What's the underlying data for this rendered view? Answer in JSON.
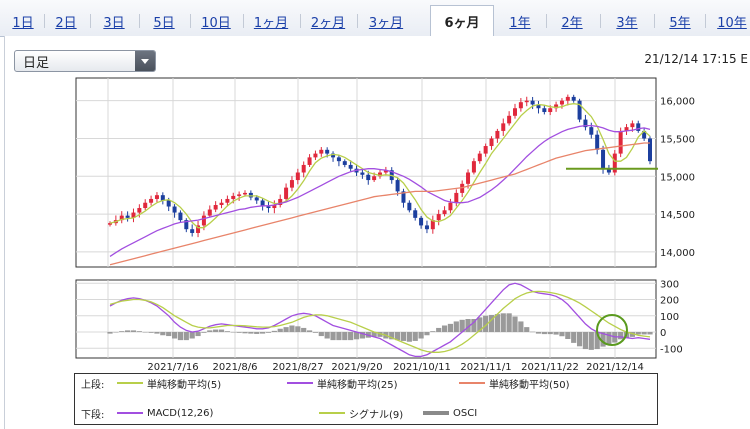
{
  "tabs": [
    {
      "label": "1日"
    },
    {
      "label": "2日"
    },
    {
      "label": "3日"
    },
    {
      "label": "5日"
    },
    {
      "label": "10日"
    },
    {
      "label": "1ヶ月"
    },
    {
      "label": "2ヶ月"
    },
    {
      "label": "3ヶ月"
    },
    {
      "label": "6ヶ月",
      "active": true
    },
    {
      "label": "1年"
    },
    {
      "label": "2年"
    },
    {
      "label": "3年"
    },
    {
      "label": "5年"
    },
    {
      "label": "10年"
    }
  ],
  "period_select": {
    "value": "日足"
  },
  "timestamp": "21/12/14 17:15 E",
  "legend": {
    "upper_label": "上段:",
    "lower_label": "下段:",
    "upper": [
      {
        "name": "単純移動平均(5)",
        "color": "#b8cf4a"
      },
      {
        "name": "単純移動平均(25)",
        "color": "#a24fe0"
      },
      {
        "name": "単純移動平均(50)",
        "color": "#e8846a"
      }
    ],
    "lower": [
      {
        "name": "MACD(12,26)",
        "color": "#a24fe0"
      },
      {
        "name": "シグナル(9)",
        "color": "#b8cf4a"
      },
      {
        "name": "OSCI",
        "color": "#8a8a8a"
      }
    ]
  },
  "chart_data": [
    {
      "type": "candlestick",
      "title": "",
      "x_ticks": [
        "2021/7/16",
        "2021/8/6",
        "2021/8/27",
        "2021/9/20",
        "2021/10/11",
        "2021/11/1",
        "2021/11/22",
        "2021/12/14"
      ],
      "ylim": [
        13800,
        16300
      ],
      "y_ticks": [
        14000,
        14500,
        15000,
        15500,
        16000
      ],
      "grid": true,
      "colors": {
        "up": "#e0283c",
        "down": "#1c3f9e"
      },
      "candles_close": [
        14380,
        14420,
        14480,
        14450,
        14520,
        14580,
        14650,
        14700,
        14750,
        14680,
        14600,
        14520,
        14420,
        14300,
        14250,
        14350,
        14480,
        14560,
        14620,
        14650,
        14700,
        14740,
        14760,
        14780,
        14720,
        14680,
        14600,
        14580,
        14620,
        14700,
        14850,
        14950,
        15050,
        15150,
        15250,
        15300,
        15350,
        15300,
        15250,
        15200,
        15150,
        15100,
        15050,
        15020,
        14950,
        15000,
        15050,
        15080,
        14950,
        14800,
        14650,
        14550,
        14450,
        14350,
        14300,
        14420,
        14500,
        14550,
        14650,
        14780,
        14900,
        15050,
        15200,
        15300,
        15400,
        15500,
        15600,
        15700,
        15800,
        15900,
        15980,
        16000,
        15950,
        15900,
        15850,
        15900,
        15950,
        16000,
        16050,
        16000,
        15750,
        15650,
        15550,
        15350,
        15100,
        15050,
        15300,
        15600,
        15650,
        15700,
        15600,
        15500,
        15200
      ],
      "series": [
        {
          "name": "単純移動平均(5)",
          "values": [
            14380,
            14400,
            14430,
            14440,
            14450,
            14490,
            14540,
            14600,
            14650,
            14680,
            14690,
            14650,
            14590,
            14500,
            14390,
            14320,
            14320,
            14380,
            14450,
            14530,
            14610,
            14670,
            14710,
            14740,
            14740,
            14740,
            14710,
            14670,
            14640,
            14640,
            14670,
            14740,
            14830,
            14940,
            15070,
            15180,
            15240,
            15270,
            15290,
            15280,
            15250,
            15200,
            15150,
            15100,
            15050,
            15030,
            15010,
            15020,
            15010,
            14980,
            14910,
            14800,
            14690,
            14560,
            14460,
            14410,
            14400,
            14430,
            14480,
            14580,
            14680,
            14790,
            14920,
            15050,
            15170,
            15300,
            15400,
            15500,
            15600,
            15700,
            15800,
            15870,
            15930,
            15950,
            15940,
            15920,
            15910,
            15920,
            15950,
            15960,
            15950,
            15870,
            15790,
            15660,
            15490,
            15300,
            15200,
            15200,
            15250,
            15370,
            15520,
            15600,
            15530
          ]
        },
        {
          "name": "単純移動平均(25)",
          "values": [
            13940,
            13990,
            14040,
            14080,
            14120,
            14160,
            14200,
            14240,
            14280,
            14310,
            14340,
            14370,
            14390,
            14400,
            14410,
            14420,
            14440,
            14460,
            14480,
            14500,
            14520,
            14540,
            14560,
            14570,
            14590,
            14600,
            14610,
            14610,
            14620,
            14640,
            14660,
            14690,
            14720,
            14760,
            14800,
            14840,
            14880,
            14920,
            14960,
            15000,
            15030,
            15060,
            15080,
            15090,
            15100,
            15100,
            15090,
            15080,
            15060,
            15030,
            15000,
            14960,
            14910,
            14860,
            14800,
            14760,
            14720,
            14680,
            14660,
            14650,
            14650,
            14660,
            14690,
            14720,
            14770,
            14820,
            14880,
            14950,
            15020,
            15100,
            15180,
            15260,
            15330,
            15400,
            15460,
            15510,
            15550,
            15590,
            15620,
            15640,
            15660,
            15670,
            15670,
            15660,
            15640,
            15610,
            15590,
            15590,
            15600,
            15610,
            15630,
            15640,
            15620
          ]
        },
        {
          "name": "単純移動平均(50)",
          "values": [
            13830,
            13850,
            13870,
            13890,
            13910,
            13930,
            13950,
            13970,
            13990,
            14010,
            14030,
            14050,
            14070,
            14090,
            14110,
            14130,
            14150,
            14170,
            14190,
            14210,
            14230,
            14250,
            14270,
            14290,
            14310,
            14330,
            14350,
            14370,
            14390,
            14410,
            14430,
            14450,
            14470,
            14490,
            14510,
            14530,
            14550,
            14570,
            14590,
            14610,
            14630,
            14650,
            14670,
            14690,
            14710,
            14730,
            14740,
            14750,
            14760,
            14770,
            14780,
            14790,
            14800,
            14800,
            14800,
            14800,
            14810,
            14820,
            14830,
            14840,
            14850,
            14870,
            14890,
            14910,
            14930,
            14950,
            14970,
            14990,
            15010,
            15030,
            15060,
            15090,
            15120,
            15150,
            15180,
            15210,
            15240,
            15260,
            15280,
            15300,
            15320,
            15340,
            15350,
            15360,
            15370,
            15380,
            15390,
            15400,
            15410,
            15420,
            15430,
            15440,
            15440
          ]
        }
      ],
      "reference_line": 15100
    },
    {
      "type": "line",
      "title": "",
      "ylim": [
        -160,
        320
      ],
      "y_ticks": [
        300,
        200,
        100,
        0,
        -100
      ],
      "series": [
        {
          "name": "MACD(12,26)",
          "values": [
            160,
            180,
            195,
            205,
            210,
            205,
            195,
            180,
            160,
            130,
            100,
            60,
            30,
            10,
            0,
            5,
            20,
            35,
            45,
            50,
            45,
            40,
            35,
            30,
            25,
            20,
            20,
            25,
            40,
            60,
            80,
            100,
            110,
            115,
            110,
            100,
            80,
            60,
            40,
            30,
            20,
            10,
            0,
            -10,
            -20,
            -30,
            -40,
            -60,
            -80,
            -100,
            -120,
            -140,
            -150,
            -150,
            -140,
            -120,
            -100,
            -80,
            -60,
            -30,
            0,
            30,
            60,
            100,
            140,
            180,
            220,
            260,
            290,
            300,
            290,
            270,
            250,
            240,
            235,
            230,
            220,
            200,
            170,
            130,
            90,
            50,
            20,
            0,
            -10,
            -20,
            -30,
            -30,
            -35,
            -40,
            -35,
            -40,
            -45
          ]
        },
        {
          "name": "シグナル(9)",
          "values": [
            170,
            180,
            190,
            195,
            200,
            200,
            195,
            185,
            170,
            150,
            125,
            100,
            80,
            60,
            40,
            30,
            25,
            25,
            30,
            35,
            40,
            40,
            40,
            38,
            35,
            32,
            30,
            30,
            33,
            40,
            50,
            60,
            75,
            90,
            100,
            105,
            105,
            100,
            90,
            80,
            70,
            60,
            45,
            30,
            15,
            0,
            -10,
            -20,
            -35,
            -50,
            -65,
            -80,
            -95,
            -110,
            -120,
            -125,
            -125,
            -120,
            -110,
            -95,
            -75,
            -50,
            -20,
            10,
            40,
            75,
            110,
            145,
            175,
            205,
            225,
            240,
            248,
            250,
            248,
            243,
            236,
            226,
            213,
            197,
            178,
            155,
            130,
            105,
            80,
            55,
            35,
            15,
            0,
            -10,
            -20,
            -25,
            -30
          ]
        }
      ],
      "osci": [
        -10,
        0,
        5,
        10,
        10,
        5,
        0,
        -5,
        -10,
        -20,
        -25,
        -40,
        -50,
        -50,
        -40,
        -25,
        -5,
        10,
        15,
        15,
        5,
        0,
        -5,
        -8,
        -10,
        -12,
        -10,
        -5,
        7,
        20,
        30,
        40,
        35,
        25,
        10,
        -5,
        -25,
        -40,
        -50,
        -50,
        -50,
        -50,
        -45,
        -40,
        -35,
        -30,
        -30,
        -40,
        -45,
        -50,
        -55,
        -60,
        -55,
        -40,
        -20,
        5,
        25,
        40,
        50,
        65,
        75,
        80,
        80,
        90,
        100,
        105,
        110,
        115,
        115,
        95,
        65,
        30,
        2,
        -10,
        -13,
        -13,
        -16,
        -26,
        -43,
        -67,
        -88,
        -105,
        -110,
        -105,
        -90,
        -75,
        -65,
        -45,
        -35,
        -30,
        -15,
        -15,
        -15
      ]
    }
  ]
}
